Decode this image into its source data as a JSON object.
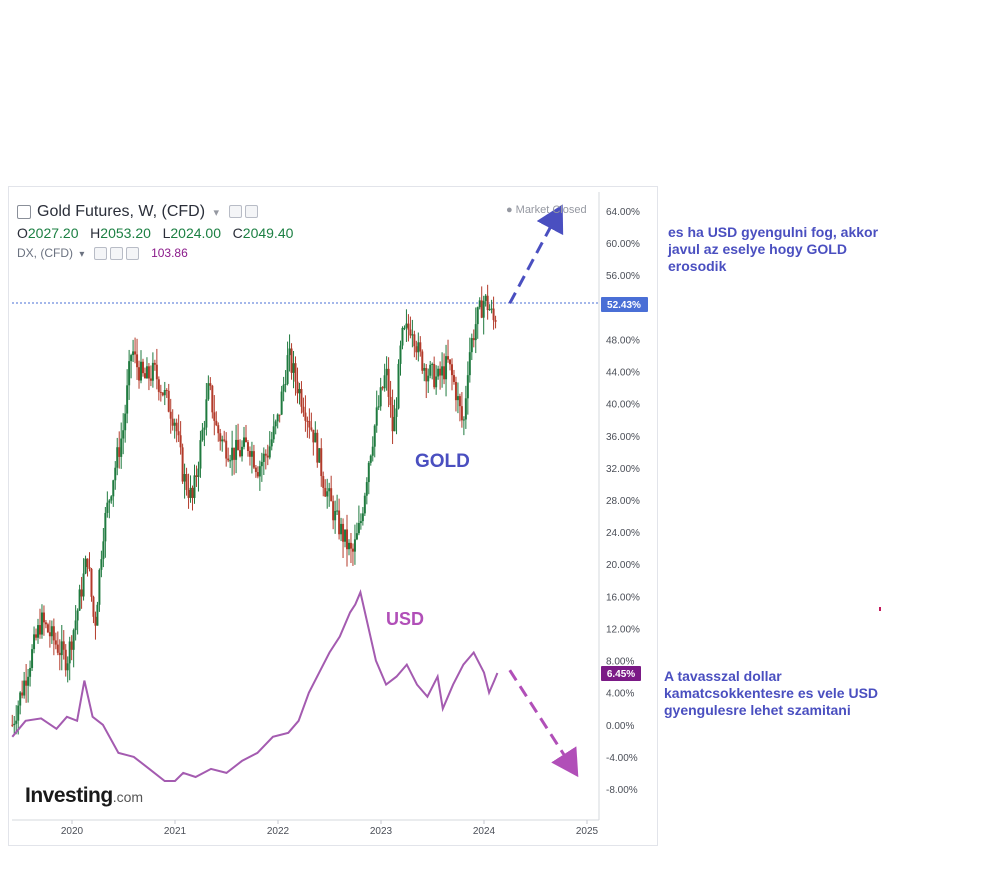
{
  "legend": {
    "symbol_title": "Gold Futures, W, (CFD)",
    "ohlc": {
      "o_label": "O",
      "o": "2027.20",
      "h_label": "H",
      "h": "2053.20",
      "l_label": "L",
      "l": "2024.00",
      "c_label": "C",
      "c": "2049.40"
    },
    "dx_title": "DX, (CFD)",
    "dx_value": "103.86"
  },
  "market_status": "Market Closed",
  "annotations": {
    "gold_label": "GOLD",
    "usd_label": "USD",
    "note_top": "es ha USD gyengulni fog, akkor javul az eselye hogy GOLD erosodik",
    "note_bottom": "A tavasszal dollar kamatcsokkentesre es vele USD gyengulesre lehet szamitani"
  },
  "logo": {
    "main": "Investing",
    "suffix": ".com"
  },
  "colors": {
    "up": "#1f7a3f",
    "down": "#b33a2a",
    "usd_line": "#a45bb0",
    "gold_badge": "#4a6fd6",
    "usd_badge": "#7b1a86",
    "note": "#4a4fc0",
    "arrow_gold": "#4a4fc0",
    "arrow_usd": "#b14fb8"
  },
  "chart_data": {
    "type": "line",
    "title": "Gold Futures, W, (CFD)",
    "x_ticks": [
      "2020",
      "2021",
      "2022",
      "2023",
      "2024",
      "2025"
    ],
    "y_ticks": [
      "64.00%",
      "60.00%",
      "56.00%",
      "52.00%",
      "48.00%",
      "44.00%",
      "40.00%",
      "36.00%",
      "32.00%",
      "28.00%",
      "24.00%",
      "20.00%",
      "16.00%",
      "12.00%",
      "8.00%",
      "4.00%",
      "0.00%",
      "-4.00%",
      "-8.00%"
    ],
    "y_unit": "%",
    "ylim": [
      -10.5,
      65.5
    ],
    "xlim": [
      2019.4,
      2025.1
    ],
    "current_values": {
      "gold": "52.43%",
      "usd": "6.45%"
    },
    "series": [
      {
        "name": "Gold Futures",
        "style": "candlestick",
        "x": [
          2019.42,
          2019.55,
          2019.7,
          2019.85,
          2019.95,
          2020.05,
          2020.15,
          2020.22,
          2020.3,
          2020.4,
          2020.5,
          2020.58,
          2020.62,
          2020.7,
          2020.8,
          2020.9,
          2021.0,
          2021.08,
          2021.17,
          2021.25,
          2021.33,
          2021.4,
          2021.47,
          2021.55,
          2021.63,
          2021.72,
          2021.8,
          2021.9,
          2022.0,
          2022.1,
          2022.17,
          2022.25,
          2022.35,
          2022.45,
          2022.55,
          2022.65,
          2022.72,
          2022.8,
          2022.88,
          2022.95,
          2023.05,
          2023.12,
          2023.2,
          2023.3,
          2023.37,
          2023.45,
          2023.55,
          2023.65,
          2023.72,
          2023.8,
          2023.85,
          2023.92,
          2024.0,
          2024.05,
          2024.1,
          2024.13
        ],
        "values": [
          0,
          6,
          13,
          10,
          8,
          14,
          21,
          12,
          24,
          31,
          37,
          47,
          45,
          43,
          44,
          41,
          38,
          31,
          28,
          35,
          42,
          37,
          35,
          34,
          34,
          35,
          32,
          34,
          38,
          46,
          43,
          40,
          36,
          30,
          26,
          23,
          21,
          25,
          33,
          38,
          44,
          36,
          48,
          50,
          46,
          44,
          43,
          45,
          42,
          37,
          46,
          50,
          53,
          52,
          50,
          52.43
        ]
      },
      {
        "name": "DX",
        "style": "line",
        "x": [
          2019.42,
          2019.55,
          2019.7,
          2019.85,
          2019.95,
          2020.05,
          2020.12,
          2020.2,
          2020.3,
          2020.45,
          2020.6,
          2020.75,
          2020.9,
          2021.0,
          2021.08,
          2021.2,
          2021.35,
          2021.5,
          2021.65,
          2021.8,
          2021.95,
          2022.1,
          2022.2,
          2022.3,
          2022.4,
          2022.5,
          2022.6,
          2022.7,
          2022.75,
          2022.8,
          2022.88,
          2022.95,
          2023.05,
          2023.15,
          2023.25,
          2023.35,
          2023.45,
          2023.55,
          2023.6,
          2023.7,
          2023.8,
          2023.9,
          2024.0,
          2024.05,
          2024.1,
          2024.13
        ],
        "values": [
          -1.5,
          0.5,
          0.8,
          -0.5,
          1,
          0.5,
          5.5,
          1,
          0,
          -3.5,
          -4,
          -5.5,
          -7,
          -7,
          -6,
          -6.5,
          -5.5,
          -6,
          -4.5,
          -3.5,
          -1.5,
          -1,
          0.5,
          4,
          6.5,
          9,
          11,
          14,
          15,
          16.5,
          12,
          8,
          5,
          6,
          7.5,
          5,
          3.5,
          6,
          2,
          5,
          7.5,
          9,
          6.5,
          4,
          5.5,
          6.45
        ]
      }
    ],
    "projections": [
      {
        "name": "gold-projection",
        "direction": "up",
        "from": [
          2024.25,
          52.5
        ],
        "to": [
          2024.75,
          64.5
        ]
      },
      {
        "name": "usd-projection",
        "direction": "down",
        "from": [
          2024.25,
          6.8
        ],
        "to": [
          2024.9,
          -6.2
        ]
      }
    ],
    "grid": false
  }
}
